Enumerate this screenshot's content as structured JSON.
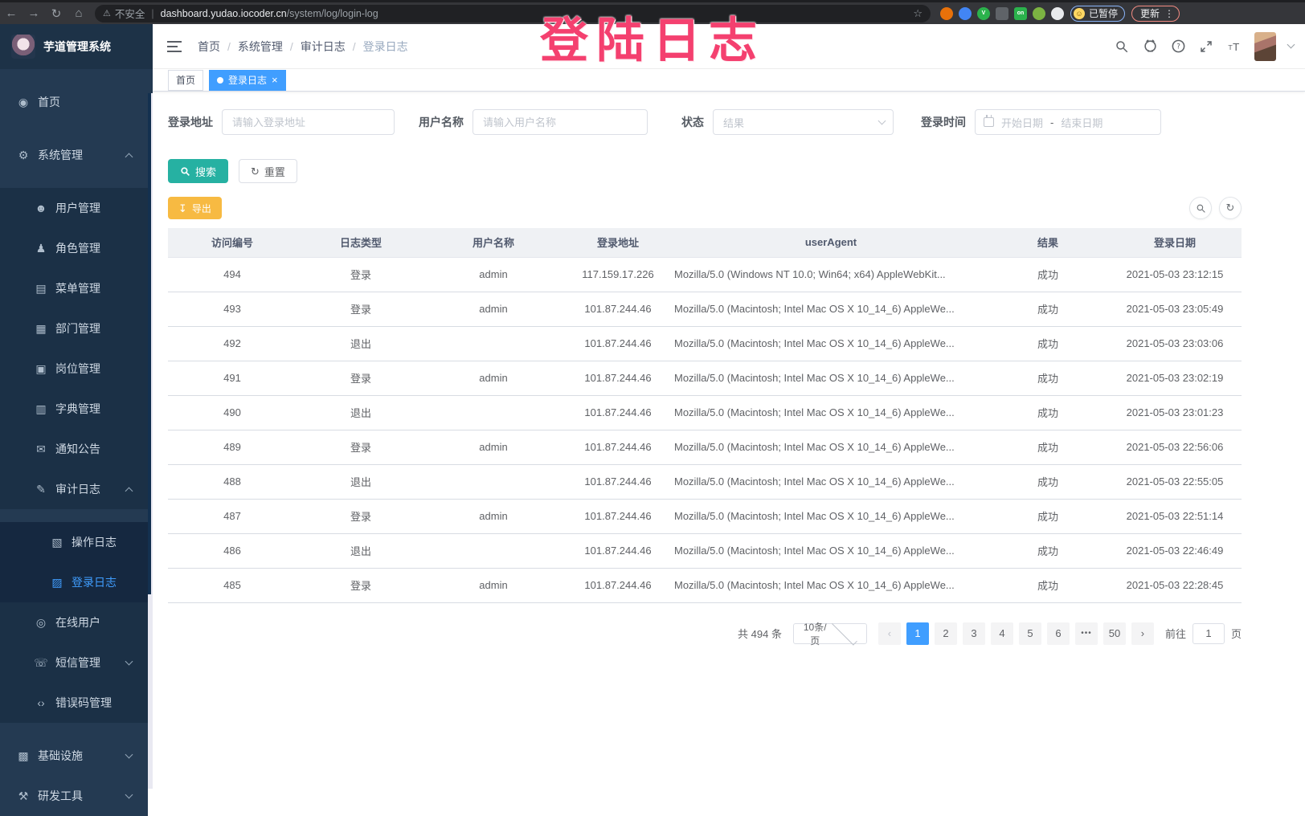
{
  "colors": {
    "accent": "#409eff",
    "search_button": "#26b1a2",
    "export_button": "#f7ba42",
    "annotation": "#f4406f",
    "sidebar_bg": "#243a52",
    "submenu_bg": "#1b3046"
  },
  "icons": {
    "back": "←",
    "forward": "→",
    "reload": "↻",
    "home": "⌂",
    "warning": "⚠",
    "star": "☆",
    "menu_dots": "⋮",
    "close": "×",
    "reset": "↻",
    "export": "↧"
  },
  "browser": {
    "warning_text": "不安全",
    "url_domain": "dashboard.yudao.iocoder.cn",
    "url_path": "/system/log/login-log",
    "paused_label": "已暂停",
    "update_label": "更新",
    "extensions": [
      {
        "name": "extension-rss-icon",
        "bg": "#e8710a",
        "glyph": ""
      },
      {
        "name": "extension-shield-icon",
        "bg": "#4285f4",
        "glyph": ""
      },
      {
        "name": "extension-v-icon",
        "bg": "#2bb24c",
        "glyph": "V"
      },
      {
        "name": "extension-grid-icon",
        "bg": "#5f6368",
        "glyph": ""
      },
      {
        "name": "extension-on-icon",
        "bg": "#2bb24c",
        "glyph": "on"
      },
      {
        "name": "extension-leaf-icon",
        "bg": "#7cb342",
        "glyph": ""
      },
      {
        "name": "extension-paw-icon",
        "bg": "#e8eaed",
        "glyph": ""
      }
    ]
  },
  "annotation": {
    "text": "登陆日志"
  },
  "sidebar": {
    "logo_title": "芋道管理系统",
    "items": [
      {
        "name": "sidebar-item-home",
        "icon": "dashboard-icon",
        "glyph": "◉",
        "label": "首页",
        "level": 1,
        "first": true
      },
      {
        "name": "sidebar-item-system",
        "icon": "gear-icon",
        "glyph": "⚙",
        "label": "系统管理",
        "level": 1,
        "caret": "up",
        "first": true
      },
      {
        "name": "sidebar-item-users",
        "icon": "user-icon",
        "glyph": "☻",
        "label": "用户管理",
        "level": 2,
        "first": true
      },
      {
        "name": "sidebar-item-roles",
        "icon": "role-icon",
        "glyph": "♟",
        "label": "角色管理",
        "level": 2
      },
      {
        "name": "sidebar-item-menus",
        "icon": "menu-list-icon",
        "glyph": "▤",
        "label": "菜单管理",
        "level": 2
      },
      {
        "name": "sidebar-item-departments",
        "icon": "org-tree-icon",
        "glyph": "▦",
        "label": "部门管理",
        "level": 2
      },
      {
        "name": "sidebar-item-posts",
        "icon": "badge-icon",
        "glyph": "▣",
        "label": "岗位管理",
        "level": 2
      },
      {
        "name": "sidebar-item-dictionary",
        "icon": "book-icon",
        "glyph": "▥",
        "label": "字典管理",
        "level": 2
      },
      {
        "name": "sidebar-item-notice",
        "icon": "announcement-icon",
        "glyph": "✉",
        "label": "通知公告",
        "level": 2
      },
      {
        "name": "sidebar-item-audit-log",
        "icon": "audit-log-icon",
        "glyph": "✎",
        "label": "审计日志",
        "level": 2,
        "caret": "up"
      },
      {
        "name": "sidebar-item-operation-log",
        "icon": "operation-log-icon",
        "glyph": "▧",
        "label": "操作日志",
        "level": 3,
        "first": true
      },
      {
        "name": "sidebar-item-login-log",
        "icon": "login-log-icon",
        "glyph": "▨",
        "label": "登录日志",
        "level": 3,
        "active": true
      },
      {
        "name": "sidebar-item-online-users",
        "icon": "online-users-icon",
        "glyph": "◎",
        "label": "在线用户",
        "level": 2
      },
      {
        "name": "sidebar-item-sms",
        "icon": "sms-icon",
        "glyph": "☏",
        "label": "短信管理",
        "level": 2,
        "caret": "down"
      },
      {
        "name": "sidebar-item-error-codes",
        "icon": "code-icon",
        "glyph": "‹›",
        "label": "错误码管理",
        "level": 2
      },
      {
        "name": "sidebar-item-infrastructure",
        "icon": "infra-icon",
        "glyph": "▩",
        "label": "基础设施",
        "level": 1,
        "caret": "down",
        "first": true
      },
      {
        "name": "sidebar-item-dev-tools",
        "icon": "tools-icon",
        "glyph": "⚒",
        "label": "研发工具",
        "level": 1,
        "caret": "down"
      }
    ]
  },
  "header": {
    "breadcrumb": [
      "首页",
      "系统管理",
      "审计日志",
      "登录日志"
    ],
    "separator": "/"
  },
  "tags": [
    {
      "label": "首页",
      "active": false
    },
    {
      "label": "登录日志",
      "active": true
    }
  ],
  "filters": {
    "login_address": {
      "label": "登录地址",
      "placeholder": "请输入登录地址"
    },
    "username": {
      "label": "用户名称",
      "placeholder": "请输入用户名称"
    },
    "status": {
      "label": "状态",
      "placeholder": "结果"
    },
    "login_time": {
      "label": "登录时间",
      "start_placeholder": "开始日期",
      "separator": "-",
      "end_placeholder": "结束日期"
    },
    "search_label": "搜索",
    "reset_label": "重置"
  },
  "toolbar": {
    "export_label": "导出"
  },
  "table": {
    "columns": [
      {
        "key": "id",
        "label": "访问编号"
      },
      {
        "key": "type",
        "label": "日志类型"
      },
      {
        "key": "user",
        "label": "用户名称"
      },
      {
        "key": "ip",
        "label": "登录地址"
      },
      {
        "key": "agent",
        "label": "userAgent"
      },
      {
        "key": "result",
        "label": "结果"
      },
      {
        "key": "date",
        "label": "登录日期"
      }
    ],
    "rows": [
      {
        "id": "494",
        "type": "登录",
        "user": "admin",
        "ip": "117.159.17.226",
        "agent": "Mozilla/5.0 (Windows NT 10.0; Win64; x64) AppleWebKit...",
        "result": "成功",
        "date": "2021-05-03 23:12:15"
      },
      {
        "id": "493",
        "type": "登录",
        "user": "admin",
        "ip": "101.87.244.46",
        "agent": "Mozilla/5.0 (Macintosh; Intel Mac OS X 10_14_6) AppleWe...",
        "result": "成功",
        "date": "2021-05-03 23:05:49"
      },
      {
        "id": "492",
        "type": "退出",
        "user": "",
        "ip": "101.87.244.46",
        "agent": "Mozilla/5.0 (Macintosh; Intel Mac OS X 10_14_6) AppleWe...",
        "result": "成功",
        "date": "2021-05-03 23:03:06"
      },
      {
        "id": "491",
        "type": "登录",
        "user": "admin",
        "ip": "101.87.244.46",
        "agent": "Mozilla/5.0 (Macintosh; Intel Mac OS X 10_14_6) AppleWe...",
        "result": "成功",
        "date": "2021-05-03 23:02:19"
      },
      {
        "id": "490",
        "type": "退出",
        "user": "",
        "ip": "101.87.244.46",
        "agent": "Mozilla/5.0 (Macintosh; Intel Mac OS X 10_14_6) AppleWe...",
        "result": "成功",
        "date": "2021-05-03 23:01:23"
      },
      {
        "id": "489",
        "type": "登录",
        "user": "admin",
        "ip": "101.87.244.46",
        "agent": "Mozilla/5.0 (Macintosh; Intel Mac OS X 10_14_6) AppleWe...",
        "result": "成功",
        "date": "2021-05-03 22:56:06"
      },
      {
        "id": "488",
        "type": "退出",
        "user": "",
        "ip": "101.87.244.46",
        "agent": "Mozilla/5.0 (Macintosh; Intel Mac OS X 10_14_6) AppleWe...",
        "result": "成功",
        "date": "2021-05-03 22:55:05"
      },
      {
        "id": "487",
        "type": "登录",
        "user": "admin",
        "ip": "101.87.244.46",
        "agent": "Mozilla/5.0 (Macintosh; Intel Mac OS X 10_14_6) AppleWe...",
        "result": "成功",
        "date": "2021-05-03 22:51:14"
      },
      {
        "id": "486",
        "type": "退出",
        "user": "",
        "ip": "101.87.244.46",
        "agent": "Mozilla/5.0 (Macintosh; Intel Mac OS X 10_14_6) AppleWe...",
        "result": "成功",
        "date": "2021-05-03 22:46:49"
      },
      {
        "id": "485",
        "type": "登录",
        "user": "admin",
        "ip": "101.87.244.46",
        "agent": "Mozilla/5.0 (Macintosh; Intel Mac OS X 10_14_6) AppleWe...",
        "result": "成功",
        "date": "2021-05-03 22:28:45"
      }
    ]
  },
  "pagination": {
    "total_text": "共 494 条",
    "page_size": "10条/页",
    "prev": "‹",
    "next": "›",
    "pages": [
      {
        "label": "1",
        "active": true
      },
      {
        "label": "2"
      },
      {
        "label": "3"
      },
      {
        "label": "4"
      },
      {
        "label": "5"
      },
      {
        "label": "6"
      },
      {
        "label": "•••",
        "more": true
      },
      {
        "label": "50"
      }
    ],
    "goto_label": "前往",
    "goto_value": "1",
    "goto_suffix": "页"
  }
}
